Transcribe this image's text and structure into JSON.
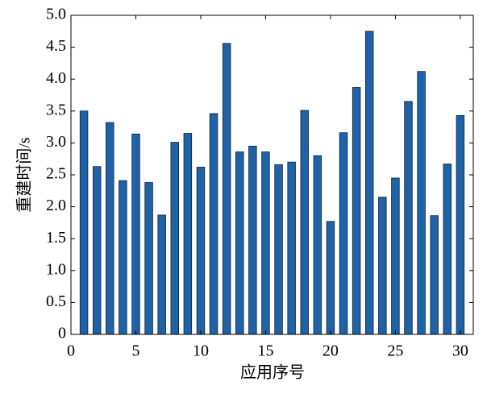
{
  "chart_data": {
    "type": "bar",
    "x_label": "应用序号",
    "y_label": "重建时间/s",
    "x": [
      1,
      2,
      3,
      4,
      5,
      6,
      7,
      8,
      9,
      10,
      11,
      12,
      13,
      14,
      15,
      16,
      17,
      18,
      19,
      20,
      21,
      22,
      23,
      24,
      25,
      26,
      27,
      28,
      29,
      30
    ],
    "values": [
      3.5,
      2.63,
      3.32,
      2.41,
      3.14,
      2.38,
      1.87,
      3.01,
      3.15,
      2.62,
      3.46,
      4.56,
      2.86,
      2.95,
      2.86,
      2.66,
      2.7,
      3.51,
      2.8,
      1.77,
      3.16,
      3.87,
      4.75,
      2.15,
      2.45,
      3.65,
      4.12,
      1.86,
      2.67,
      3.43
    ],
    "color": "#1f62a5",
    "xlim": [
      0,
      31
    ],
    "xticks": [
      0,
      5,
      10,
      15,
      20,
      25,
      30
    ],
    "ylim": [
      0,
      5
    ],
    "yticks": [
      0,
      0.5,
      {
        "value": 1,
        "label": "1.0"
      },
      1.5,
      {
        "value": 2,
        "label": "2.0"
      },
      2.5,
      {
        "value": 3,
        "label": "3.0"
      },
      3.5,
      {
        "value": 4,
        "label": "4.0"
      },
      4.5,
      {
        "value": 5,
        "label": "5.0"
      }
    ]
  }
}
